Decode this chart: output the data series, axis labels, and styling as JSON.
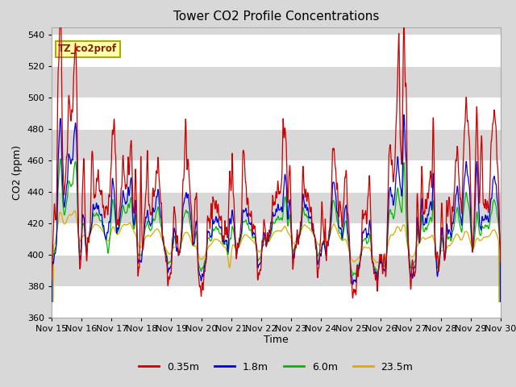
{
  "title": "Tower CO2 Profile Concentrations",
  "xlabel": "Time",
  "ylabel": "CO2 (ppm)",
  "ylim": [
    360,
    545
  ],
  "yticks": [
    360,
    380,
    400,
    420,
    440,
    460,
    480,
    500,
    520,
    540
  ],
  "legend_label": "TZ_co2prof",
  "series_labels": [
    "0.35m",
    "1.8m",
    "6.0m",
    "23.5m"
  ],
  "series_colors": [
    "#cc0000",
    "#0000dd",
    "#00bb00",
    "#ddaa00"
  ],
  "xtick_labels": [
    "Nov 15",
    "Nov 16",
    "Nov 17",
    "Nov 18",
    "Nov 19",
    "Nov 20",
    "Nov 21",
    "Nov 22",
    "Nov 23",
    "Nov 24",
    "Nov 25",
    "Nov 26",
    "Nov 27",
    "Nov 28",
    "Nov 29",
    "Nov 30"
  ],
  "bg_color": "#d8d8d8",
  "plot_bg": "#d8d8d8",
  "grid_color": "#ffffff",
  "n_points": 4320,
  "seed": 12345
}
